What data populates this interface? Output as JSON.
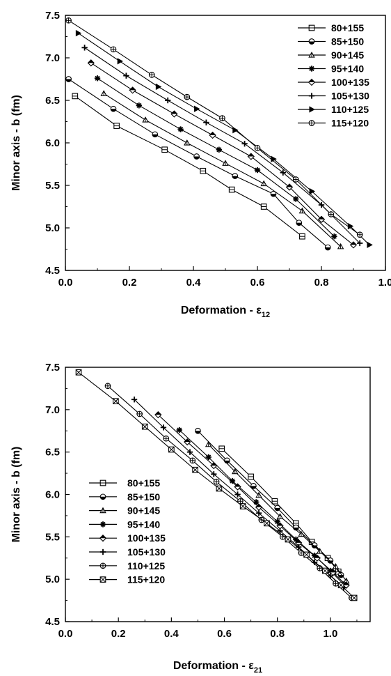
{
  "chart_data": [
    {
      "type": "line",
      "xlabel": "Deformation - ε",
      "xlabel_sub": "12",
      "ylabel": "Minor axis - b (fm)",
      "xlim": [
        0.0,
        1.0
      ],
      "ylim": [
        4.5,
        7.5
      ],
      "xticks": [
        "0.0",
        "0.2",
        "0.4",
        "0.6",
        "0.8",
        "1.0"
      ],
      "yticks": [
        "4.5",
        "5.0",
        "5.5",
        "6.0",
        "6.5",
        "7.0",
        "7.5"
      ],
      "legend_position": "top-right",
      "series": [
        {
          "name": "80+155",
          "marker": "square",
          "x": [
            0.03,
            0.16,
            0.31,
            0.43,
            0.52,
            0.62,
            0.74
          ],
          "y": [
            6.55,
            6.2,
            5.92,
            5.67,
            5.45,
            5.25,
            4.9
          ]
        },
        {
          "name": "85+150",
          "marker": "circle",
          "x": [
            0.01,
            0.15,
            0.28,
            0.41,
            0.53,
            0.65,
            0.73,
            0.82
          ],
          "y": [
            6.75,
            6.4,
            6.1,
            5.84,
            5.61,
            5.4,
            5.06,
            4.77
          ]
        },
        {
          "name": "90+145",
          "marker": "triangle",
          "x": [
            0.12,
            0.25,
            0.38,
            0.5,
            0.62,
            0.74,
            0.86
          ],
          "y": [
            6.58,
            6.27,
            6.0,
            5.76,
            5.52,
            5.2,
            4.78
          ]
        },
        {
          "name": "95+140",
          "marker": "star",
          "x": [
            0.1,
            0.23,
            0.36,
            0.48,
            0.6,
            0.72,
            0.84
          ],
          "y": [
            6.76,
            6.44,
            6.16,
            5.92,
            5.68,
            5.34,
            4.9
          ]
        },
        {
          "name": "100+135",
          "marker": "diamond",
          "x": [
            0.08,
            0.21,
            0.34,
            0.46,
            0.58,
            0.7,
            0.8,
            0.9
          ],
          "y": [
            6.94,
            6.62,
            6.34,
            6.09,
            5.84,
            5.48,
            5.1,
            4.8
          ]
        },
        {
          "name": "105+130",
          "marker": "cross",
          "x": [
            0.06,
            0.19,
            0.32,
            0.44,
            0.56,
            0.68,
            0.8,
            0.92
          ],
          "y": [
            7.12,
            6.79,
            6.5,
            6.24,
            5.99,
            5.65,
            5.27,
            4.82
          ]
        },
        {
          "name": "110+125",
          "marker": "tri-right",
          "x": [
            0.04,
            0.17,
            0.29,
            0.41,
            0.53,
            0.65,
            0.77,
            0.89,
            0.95
          ],
          "y": [
            7.29,
            6.96,
            6.66,
            6.4,
            6.15,
            5.81,
            5.43,
            5.02,
            4.8
          ]
        },
        {
          "name": "115+120",
          "marker": "circle-cross",
          "x": [
            0.01,
            0.15,
            0.27,
            0.38,
            0.49,
            0.6,
            0.72,
            0.83,
            0.92
          ],
          "y": [
            7.44,
            7.1,
            6.8,
            6.54,
            6.29,
            5.94,
            5.57,
            5.16,
            4.92
          ]
        }
      ]
    },
    {
      "type": "line",
      "xlabel": "Deformation - ε",
      "xlabel_sub": "21",
      "ylabel": "Minor axis - b (fm)",
      "xlim": [
        0.0,
        1.15
      ],
      "ylim": [
        4.5,
        7.5
      ],
      "xticks": [
        "0.0",
        "0.2",
        "0.4",
        "0.6",
        "0.8",
        "1.0"
      ],
      "yticks": [
        "4.5",
        "5.0",
        "5.5",
        "6.0",
        "6.5",
        "7.0",
        "7.5"
      ],
      "legend_position": "center-left",
      "series": [
        {
          "name": "80+155",
          "marker": "square",
          "x": [
            0.59,
            0.7,
            0.79,
            0.87,
            0.93,
            0.99,
            1.03
          ],
          "y": [
            6.54,
            6.21,
            5.92,
            5.66,
            5.44,
            5.25,
            5.09
          ]
        },
        {
          "name": "85+150",
          "marker": "circle",
          "x": [
            0.5,
            0.61,
            0.71,
            0.8,
            0.87,
            0.94,
            1.0,
            1.04
          ],
          "y": [
            6.75,
            6.4,
            6.1,
            5.84,
            5.61,
            5.4,
            5.22,
            5.05
          ]
        },
        {
          "name": "90+145",
          "marker": "triangle",
          "x": [
            0.54,
            0.64,
            0.73,
            0.81,
            0.89,
            0.96,
            1.02,
            1.06
          ],
          "y": [
            6.59,
            6.27,
            5.99,
            5.74,
            5.53,
            5.33,
            5.15,
            4.98
          ]
        },
        {
          "name": "95+140",
          "marker": "star",
          "x": [
            0.43,
            0.54,
            0.63,
            0.72,
            0.8,
            0.87,
            0.94,
            1.0,
            1.05
          ],
          "y": [
            6.76,
            6.44,
            6.16,
            5.91,
            5.68,
            5.47,
            5.28,
            5.1,
            4.94
          ]
        },
        {
          "name": "100+135",
          "marker": "diamond",
          "x": [
            0.35,
            0.46,
            0.56,
            0.65,
            0.73,
            0.81,
            0.88,
            0.95,
            1.01,
            1.06
          ],
          "y": [
            6.94,
            6.62,
            6.34,
            6.09,
            5.85,
            5.63,
            5.43,
            5.25,
            5.08,
            4.93
          ]
        },
        {
          "name": "105+130",
          "marker": "cross",
          "x": [
            0.26,
            0.37,
            0.47,
            0.56,
            0.65,
            0.73,
            0.81,
            0.88,
            0.94,
            1.0,
            1.05
          ],
          "y": [
            7.12,
            6.79,
            6.5,
            6.24,
            6.0,
            5.78,
            5.57,
            5.38,
            5.2,
            5.04,
            4.9
          ]
        },
        {
          "name": "110+125",
          "marker": "circle-cross",
          "x": [
            0.16,
            0.28,
            0.38,
            0.48,
            0.57,
            0.66,
            0.74,
            0.82,
            0.89,
            0.96,
            1.02,
            1.08
          ],
          "y": [
            7.28,
            6.95,
            6.66,
            6.4,
            6.15,
            5.92,
            5.7,
            5.5,
            5.31,
            5.13,
            4.95,
            4.78
          ]
        },
        {
          "name": "115+120",
          "marker": "square-x",
          "x": [
            0.05,
            0.19,
            0.3,
            0.4,
            0.49,
            0.58,
            0.67,
            0.76,
            0.84,
            0.91,
            0.98,
            1.04,
            1.09
          ],
          "y": [
            7.44,
            7.1,
            6.8,
            6.53,
            6.29,
            6.07,
            5.86,
            5.66,
            5.47,
            5.29,
            5.1,
            4.93,
            4.78
          ]
        }
      ]
    }
  ]
}
